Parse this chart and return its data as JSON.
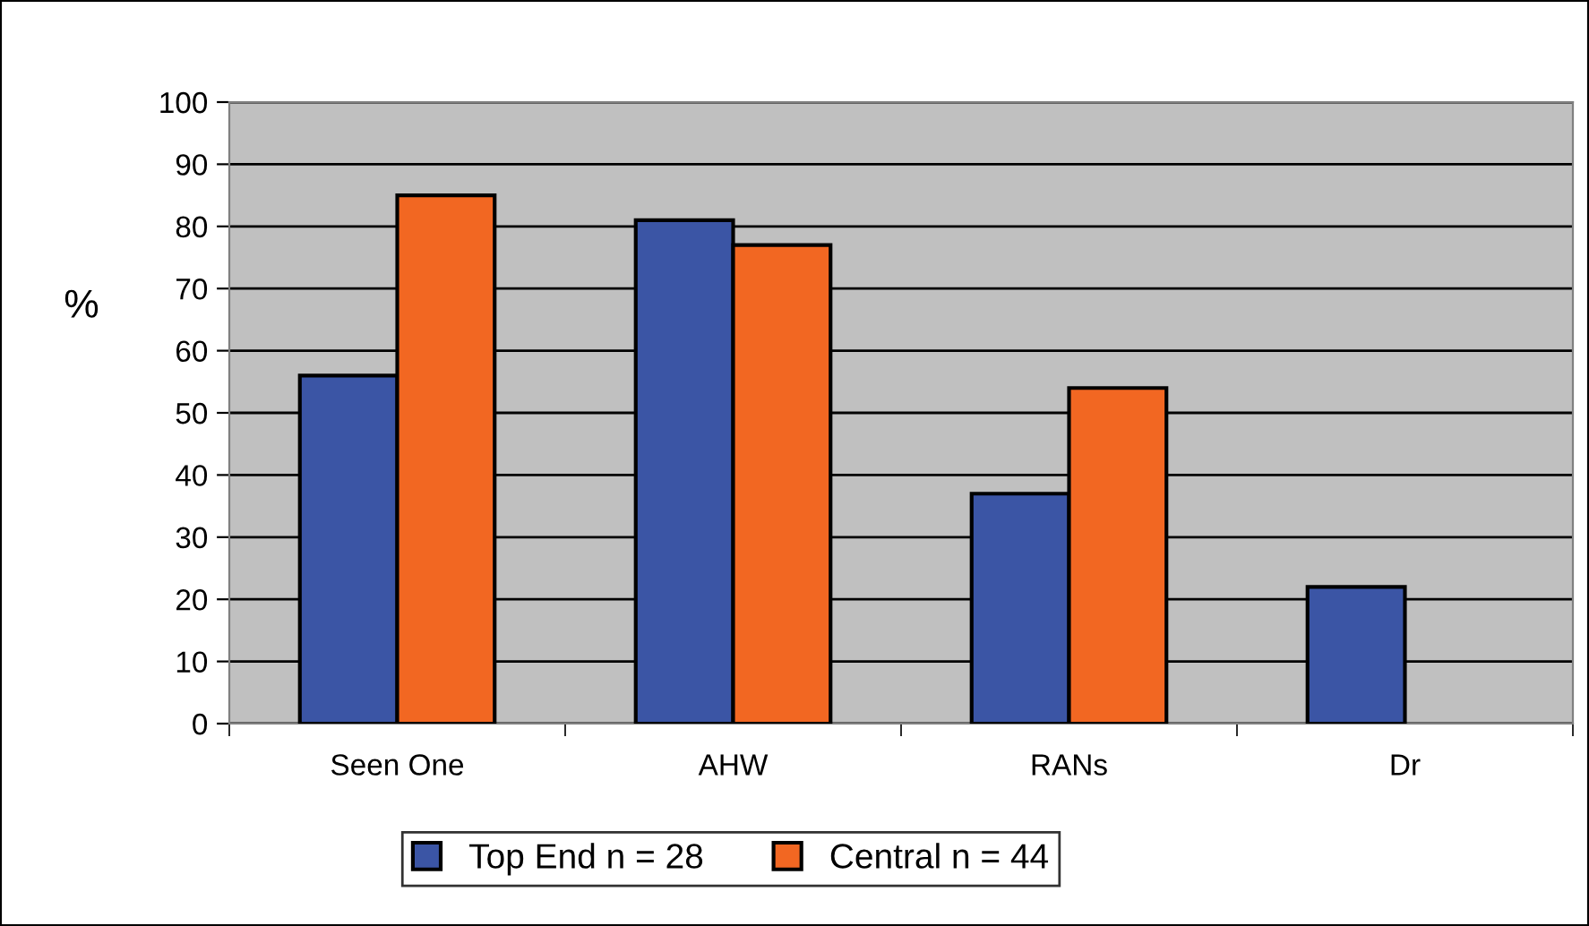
{
  "chart_data": {
    "type": "bar",
    "ylabel": "%",
    "categories": [
      "Seen One",
      "AHW",
      "RANs",
      "Dr"
    ],
    "series": [
      {
        "name": "Top End n = 28",
        "color": "#3b55a5",
        "values": [
          56,
          81,
          37,
          22
        ]
      },
      {
        "name": "Central n = 44",
        "color": "#f26722",
        "values": [
          85,
          77,
          54,
          null
        ]
      }
    ],
    "ylim": [
      0,
      100
    ],
    "yticks": [
      0,
      10,
      20,
      30,
      40,
      50,
      60,
      70,
      80,
      90,
      100
    ],
    "grid": "y",
    "legend": "bottom"
  }
}
